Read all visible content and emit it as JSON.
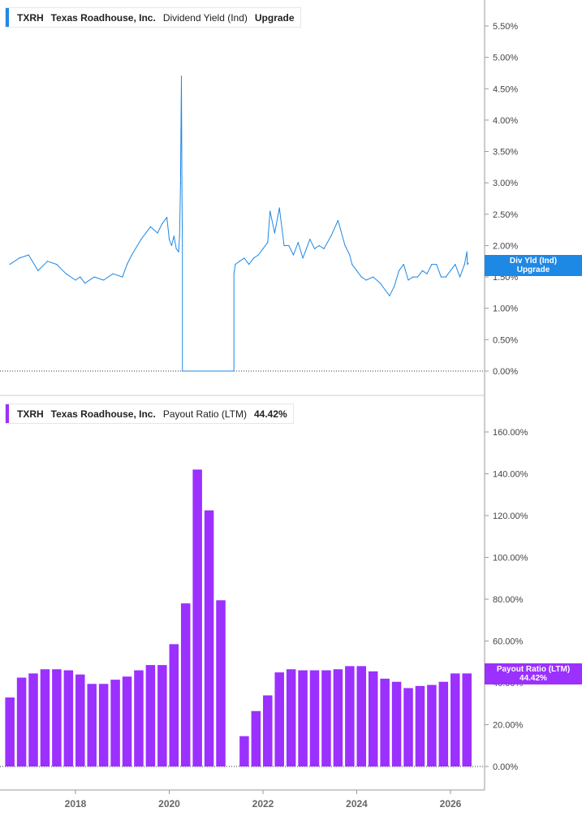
{
  "panels": {
    "top": {
      "ticker": "TXRH",
      "company": "Texas Roadhouse, Inc.",
      "metric": "Dividend Yield (Ind)",
      "value": "Upgrade",
      "color": "#1e88e5",
      "tag_line1": "Div Yld (Ind)",
      "tag_line2": "Upgrade"
    },
    "bottom": {
      "ticker": "TXRH",
      "company": "Texas Roadhouse, Inc.",
      "metric": "Payout Ratio (LTM)",
      "value": "44.42%",
      "color": "#9b30ff",
      "tag_line1": "Payout Ratio (LTM)",
      "tag_line2": "44.42%"
    }
  },
  "chart_data": [
    {
      "type": "line",
      "series": [
        {
          "x": [
            2016.6,
            2016.8,
            2017.0,
            2017.2,
            2017.4,
            2017.6,
            2017.8,
            2018.0,
            2018.1,
            2018.2,
            2018.4,
            2018.6,
            2018.8,
            2019.0,
            2019.1,
            2019.2,
            2019.4,
            2019.6,
            2019.75,
            2019.85,
            2019.95,
            2020.0,
            2020.05,
            2020.1,
            2020.15,
            2020.2,
            2020.22,
            2020.24,
            2020.26,
            2020.27,
            2020.28,
            2020.28,
            2021.38,
            2021.38,
            2021.39,
            2021.41,
            2021.5,
            2021.6,
            2021.7,
            2021.8,
            2021.9,
            2022.0,
            2022.1,
            2022.15,
            2022.25,
            2022.35,
            2022.45,
            2022.55,
            2022.65,
            2022.75,
            2022.85,
            2023.0,
            2023.1,
            2023.2,
            2023.3,
            2023.45,
            2023.6,
            2023.75,
            2023.85,
            2023.9,
            2024.0,
            2024.1,
            2024.2,
            2024.35,
            2024.5,
            2024.6,
            2024.7,
            2024.8,
            2024.9,
            2025.0,
            2025.1,
            2025.2,
            2025.3,
            2025.4,
            2025.5,
            2025.6,
            2025.7,
            2025.8,
            2025.9,
            2026.0,
            2026.1,
            2026.2,
            2026.25,
            2026.3,
            2026.35,
            2026.36,
            2026.38
          ],
          "values": [
            1.7,
            1.8,
            1.85,
            1.6,
            1.75,
            1.7,
            1.55,
            1.45,
            1.5,
            1.4,
            1.5,
            1.45,
            1.55,
            1.5,
            1.7,
            1.85,
            2.1,
            2.3,
            2.2,
            2.35,
            2.45,
            2.1,
            2.0,
            2.15,
            1.95,
            1.9,
            2.15,
            3.0,
            4.7,
            3.0,
            2.0,
            0.0,
            0.0,
            1.55,
            1.6,
            1.7,
            1.75,
            1.8,
            1.7,
            1.8,
            1.85,
            1.95,
            2.05,
            2.55,
            2.2,
            2.6,
            2.0,
            2.0,
            1.85,
            2.05,
            1.8,
            2.1,
            1.95,
            2.0,
            1.95,
            2.15,
            2.4,
            2.0,
            1.85,
            1.7,
            1.6,
            1.5,
            1.45,
            1.5,
            1.4,
            1.3,
            1.2,
            1.35,
            1.6,
            1.7,
            1.45,
            1.5,
            1.5,
            1.6,
            1.55,
            1.7,
            1.7,
            1.5,
            1.5,
            1.6,
            1.7,
            1.5,
            1.6,
            1.7,
            1.9,
            1.7,
            1.72
          ]
        }
      ],
      "ylim": [
        0,
        5.5
      ],
      "yticks": [
        "0.00%",
        "0.50%",
        "1.00%",
        "1.50%",
        "2.00%",
        "2.50%",
        "3.00%",
        "3.50%",
        "4.00%",
        "4.50%",
        "5.00%",
        "5.50%"
      ]
    },
    {
      "type": "bar",
      "x": [
        2016.6,
        2016.85,
        2017.1,
        2017.35,
        2017.6,
        2017.85,
        2018.1,
        2018.35,
        2018.6,
        2018.85,
        2019.1,
        2019.35,
        2019.6,
        2019.85,
        2020.1,
        2020.35,
        2020.6,
        2020.85,
        2021.1,
        2021.35,
        2021.6,
        2021.85,
        2022.1,
        2022.35,
        2022.6,
        2022.85,
        2023.1,
        2023.35,
        2023.6,
        2023.85,
        2024.1,
        2024.35,
        2024.6,
        2024.85,
        2025.1,
        2025.35,
        2025.6,
        2025.85,
        2026.1,
        2026.35
      ],
      "series": [
        {
          "values": [
            33,
            42.5,
            44.5,
            46.5,
            46.5,
            46,
            44,
            39.5,
            39.5,
            41.5,
            43,
            46,
            48.5,
            48.5,
            58.5,
            78,
            142,
            122.5,
            79.5,
            null,
            14.5,
            26.5,
            34,
            45,
            46.5,
            46,
            46,
            46,
            46.5,
            48,
            48,
            45.5,
            42,
            40.5,
            37.5,
            38.5,
            39,
            40.5,
            44.5,
            44.5
          ]
        }
      ],
      "ylim": [
        0,
        160
      ],
      "yticks": [
        "0.00%",
        "20.00%",
        "40.00%",
        "60.00%",
        "80.00%",
        "100.00%",
        "120.00%",
        "140.00%",
        "160.00%"
      ],
      "xticks": [
        "2018",
        "2020",
        "2022",
        "2024",
        "2026"
      ]
    }
  ]
}
